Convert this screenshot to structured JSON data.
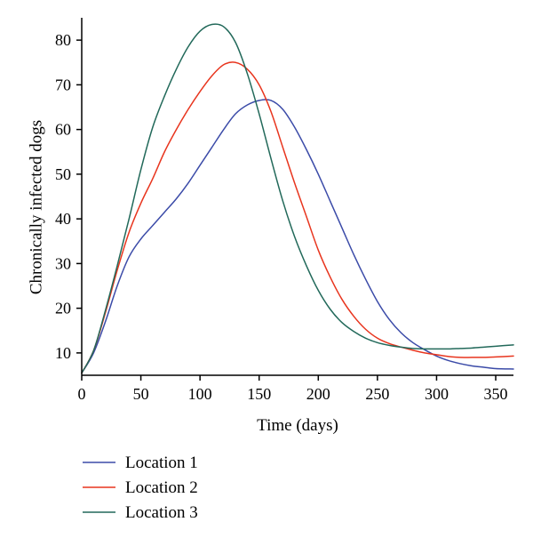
{
  "chart_data": {
    "type": "line",
    "xlabel": "Time (days)",
    "ylabel": "Chronically infected dogs",
    "xlim": [
      0,
      365
    ],
    "ylim": [
      5,
      85
    ],
    "xticks": [
      0,
      50,
      100,
      150,
      200,
      250,
      300,
      350
    ],
    "yticks": [
      10,
      20,
      30,
      40,
      50,
      60,
      70,
      80
    ],
    "grid": false,
    "legend_position": "bottom-left",
    "series": [
      {
        "name": "Location 1",
        "color": "#3B4BA8",
        "x": [
          0,
          10,
          20,
          30,
          40,
          50,
          60,
          70,
          80,
          90,
          100,
          110,
          120,
          130,
          140,
          150,
          160,
          170,
          180,
          190,
          200,
          210,
          220,
          230,
          240,
          250,
          260,
          270,
          280,
          290,
          300,
          310,
          320,
          330,
          340,
          350,
          365
        ],
        "y": [
          5.5,
          10,
          17,
          25,
          31.5,
          35.5,
          38.5,
          41.5,
          44.5,
          48,
          52,
          56,
          60,
          63.5,
          65.5,
          66.5,
          66.5,
          64.5,
          60.5,
          55.5,
          50,
          44,
          38,
          32,
          26.5,
          21.5,
          17.5,
          14.5,
          12.3,
          10.7,
          9.3,
          8.3,
          7.6,
          7.1,
          6.8,
          6.5,
          6.4
        ]
      },
      {
        "name": "Location 2",
        "color": "#E8351E",
        "x": [
          0,
          10,
          20,
          30,
          40,
          50,
          60,
          70,
          80,
          90,
          100,
          110,
          120,
          130,
          140,
          150,
          160,
          170,
          180,
          190,
          200,
          210,
          220,
          230,
          240,
          250,
          260,
          270,
          280,
          290,
          300,
          310,
          320,
          330,
          340,
          350,
          365
        ],
        "y": [
          5.5,
          10.5,
          19,
          28.5,
          37,
          43.5,
          49,
          55,
          60,
          64.5,
          68.5,
          72,
          74.5,
          75,
          73.5,
          70,
          64,
          56,
          48,
          40.5,
          33,
          27,
          22,
          18.2,
          15.3,
          13.3,
          12.1,
          11.3,
          10.6,
          10,
          9.6,
          9.2,
          9,
          9,
          9,
          9.1,
          9.3
        ]
      },
      {
        "name": "Location 3",
        "color": "#22695A",
        "x": [
          0,
          10,
          20,
          30,
          40,
          50,
          60,
          70,
          80,
          90,
          100,
          110,
          120,
          130,
          140,
          150,
          160,
          170,
          180,
          190,
          200,
          210,
          220,
          230,
          240,
          250,
          260,
          270,
          280,
          290,
          300,
          310,
          320,
          330,
          340,
          350,
          365
        ],
        "y": [
          5.5,
          10.5,
          19.5,
          29.5,
          40,
          51,
          60.5,
          67.5,
          73.5,
          78.5,
          82,
          83.5,
          83,
          79.5,
          72.5,
          63.5,
          53.5,
          44,
          36,
          29.5,
          24,
          19.8,
          16.8,
          14.8,
          13.3,
          12.3,
          11.7,
          11.3,
          11,
          10.9,
          10.9,
          10.9,
          11,
          11.1,
          11.3,
          11.5,
          11.8
        ]
      }
    ]
  }
}
